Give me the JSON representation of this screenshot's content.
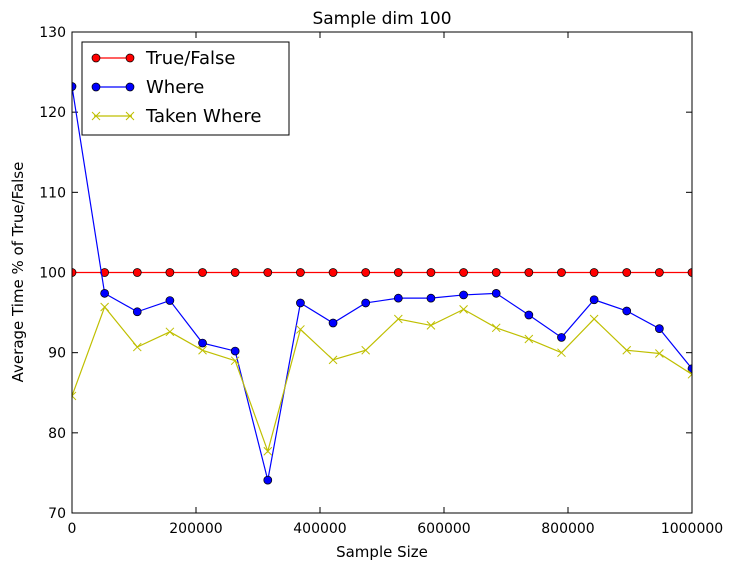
{
  "chart_data": {
    "type": "line",
    "title": "Sample dim 100",
    "xlabel": "Sample Size",
    "ylabel": "Average Time % of True/False",
    "xlim": [
      0,
      1000000
    ],
    "ylim": [
      70,
      130
    ],
    "xticks": [
      0,
      200000,
      400000,
      600000,
      800000,
      1000000
    ],
    "xtick_labels": [
      "0",
      "200000",
      "400000",
      "600000",
      "800000",
      "1000000"
    ],
    "yticks": [
      70,
      80,
      90,
      100,
      110,
      120,
      130
    ],
    "ytick_labels": [
      "70",
      "80",
      "90",
      "100",
      "110",
      "120",
      "130"
    ],
    "grid": false,
    "legend": "top-left",
    "x": [
      0,
      52632,
      105263,
      157895,
      210526,
      263158,
      315789,
      368421,
      421053,
      473684,
      526316,
      578947,
      631579,
      684211,
      736842,
      789474,
      842105,
      894737,
      947368,
      1000000
    ],
    "series": [
      {
        "name": "True/False",
        "color": "#ff0000",
        "marker": "circle",
        "values": [
          100,
          100,
          100,
          100,
          100,
          100,
          100,
          100,
          100,
          100,
          100,
          100,
          100,
          100,
          100,
          100,
          100,
          100,
          100,
          100
        ]
      },
      {
        "name": "Where",
        "color": "#0000ff",
        "marker": "circle",
        "values": [
          123.2,
          97.4,
          95.1,
          96.5,
          91.2,
          90.2,
          74.1,
          96.2,
          93.7,
          96.2,
          96.8,
          96.8,
          97.2,
          97.4,
          94.7,
          91.9,
          96.6,
          95.2,
          93.0,
          88.0
        ]
      },
      {
        "name": "Taken Where",
        "color": "#bfbf00",
        "marker": "x",
        "values": [
          84.6,
          95.7,
          90.7,
          92.6,
          90.3,
          89.0,
          77.7,
          92.9,
          89.1,
          90.3,
          94.2,
          93.4,
          95.4,
          93.1,
          91.7,
          90.0,
          94.2,
          90.3,
          89.9,
          87.3
        ]
      }
    ]
  }
}
